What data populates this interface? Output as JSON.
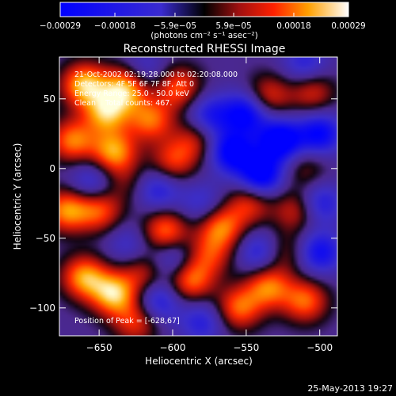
{
  "chart_data": {
    "type": "heatmap",
    "title": "Reconstructed RHESSI Image",
    "xlabel": "Heliocentric X (arcsec)",
    "ylabel": "Heliocentric Y (arcsec)",
    "xlim": [
      -677,
      -488
    ],
    "ylim": [
      -120,
      80
    ],
    "x_ticks": [
      -650,
      -600,
      -550,
      -500
    ],
    "x_tick_labels": [
      "−650",
      "−600",
      "−550",
      "−500"
    ],
    "y_ticks": [
      -100,
      -50,
      0,
      50
    ],
    "y_tick_labels": [
      "−100",
      "−50",
      "0",
      "50"
    ],
    "colorbar": {
      "min": -0.00029,
      "max": 0.00029,
      "ticks": [
        -0.00029,
        -0.00018,
        -5.9e-05,
        5.9e-05,
        0.00018,
        0.00029
      ],
      "tick_labels": [
        "−0.00029",
        "−0.00018",
        "−5.9e−05",
        "5.9e−05",
        "0.00018",
        "0.00029"
      ],
      "units_label": "(photons cm⁻² s⁻¹ asec⁻²)"
    },
    "annotations": [
      "21-Oct-2002 02:19:28.000 to 02:20:08.000",
      "Detectors: 4F 5F 6F 7F 8F, Att 0",
      "Energy Range: 25.0 - 50.0 keV",
      "Clean    Total counts: 467."
    ],
    "peak_label": "Position of Peak = [-628,67]",
    "blobs": [
      {
        "x": -660,
        "y": 60,
        "v": 1.0
      },
      {
        "x": -645,
        "y": 40,
        "v": 0.9
      },
      {
        "x": -632,
        "y": 58,
        "v": 1.0
      },
      {
        "x": -668,
        "y": 20,
        "v": 0.8
      },
      {
        "x": -640,
        "y": 12,
        "v": 0.9
      },
      {
        "x": -615,
        "y": 35,
        "v": 0.75
      },
      {
        "x": -596,
        "y": 58,
        "v": 0.7
      },
      {
        "x": -585,
        "y": 20,
        "v": 0.5
      },
      {
        "x": -600,
        "y": 5,
        "v": 0.6
      },
      {
        "x": -672,
        "y": -30,
        "v": 0.85
      },
      {
        "x": -650,
        "y": -30,
        "v": 0.7
      },
      {
        "x": -640,
        "y": -90,
        "v": 1.0
      },
      {
        "x": -660,
        "y": -78,
        "v": 0.9
      },
      {
        "x": -625,
        "y": -110,
        "v": 0.6
      },
      {
        "x": -605,
        "y": -45,
        "v": 0.8
      },
      {
        "x": -588,
        "y": -80,
        "v": 0.8
      },
      {
        "x": -620,
        "y": -75,
        "v": 0.5
      },
      {
        "x": -575,
        "y": -62,
        "v": 0.55
      },
      {
        "x": -567,
        "y": -42,
        "v": 0.8
      },
      {
        "x": -548,
        "y": -25,
        "v": 0.6
      },
      {
        "x": -555,
        "y": -100,
        "v": 0.75
      },
      {
        "x": -535,
        "y": -85,
        "v": 0.8
      },
      {
        "x": -510,
        "y": -95,
        "v": 0.75
      },
      {
        "x": -516,
        "y": -30,
        "v": 0.55
      },
      {
        "x": -535,
        "y": 52,
        "v": 0.6
      },
      {
        "x": -505,
        "y": 55,
        "v": 0.55
      },
      {
        "x": -510,
        "y": 0,
        "v": 0.35
      },
      {
        "x": -525,
        "y": -60,
        "v": 0.45
      },
      {
        "x": -632,
        "y": -10,
        "v": 0.3
      },
      {
        "x": -560,
        "y": 12,
        "v": -0.9
      },
      {
        "x": -550,
        "y": 40,
        "v": -0.85
      },
      {
        "x": -527,
        "y": 20,
        "v": -1.0
      },
      {
        "x": -500,
        "y": 25,
        "v": -0.8
      },
      {
        "x": -540,
        "y": -5,
        "v": -0.95
      },
      {
        "x": -575,
        "y": 38,
        "v": -0.6
      },
      {
        "x": -500,
        "y": -60,
        "v": -0.7
      },
      {
        "x": -540,
        "y": -60,
        "v": -0.6
      },
      {
        "x": -580,
        "y": -25,
        "v": -0.4
      },
      {
        "x": -655,
        "y": -10,
        "v": -0.5
      },
      {
        "x": -610,
        "y": -15,
        "v": -0.55
      },
      {
        "x": -610,
        "y": -95,
        "v": -0.6
      },
      {
        "x": -600,
        "y": -65,
        "v": -0.5
      },
      {
        "x": -620,
        "y": 70,
        "v": -0.4
      },
      {
        "x": -580,
        "y": -110,
        "v": -0.5
      },
      {
        "x": -630,
        "y": -55,
        "v": -0.35
      },
      {
        "x": -500,
        "y": -25,
        "v": -0.6
      },
      {
        "x": -510,
        "y": 75,
        "v": -0.5
      }
    ]
  },
  "footer": {
    "timestamp": "25-May-2013 19:27"
  }
}
